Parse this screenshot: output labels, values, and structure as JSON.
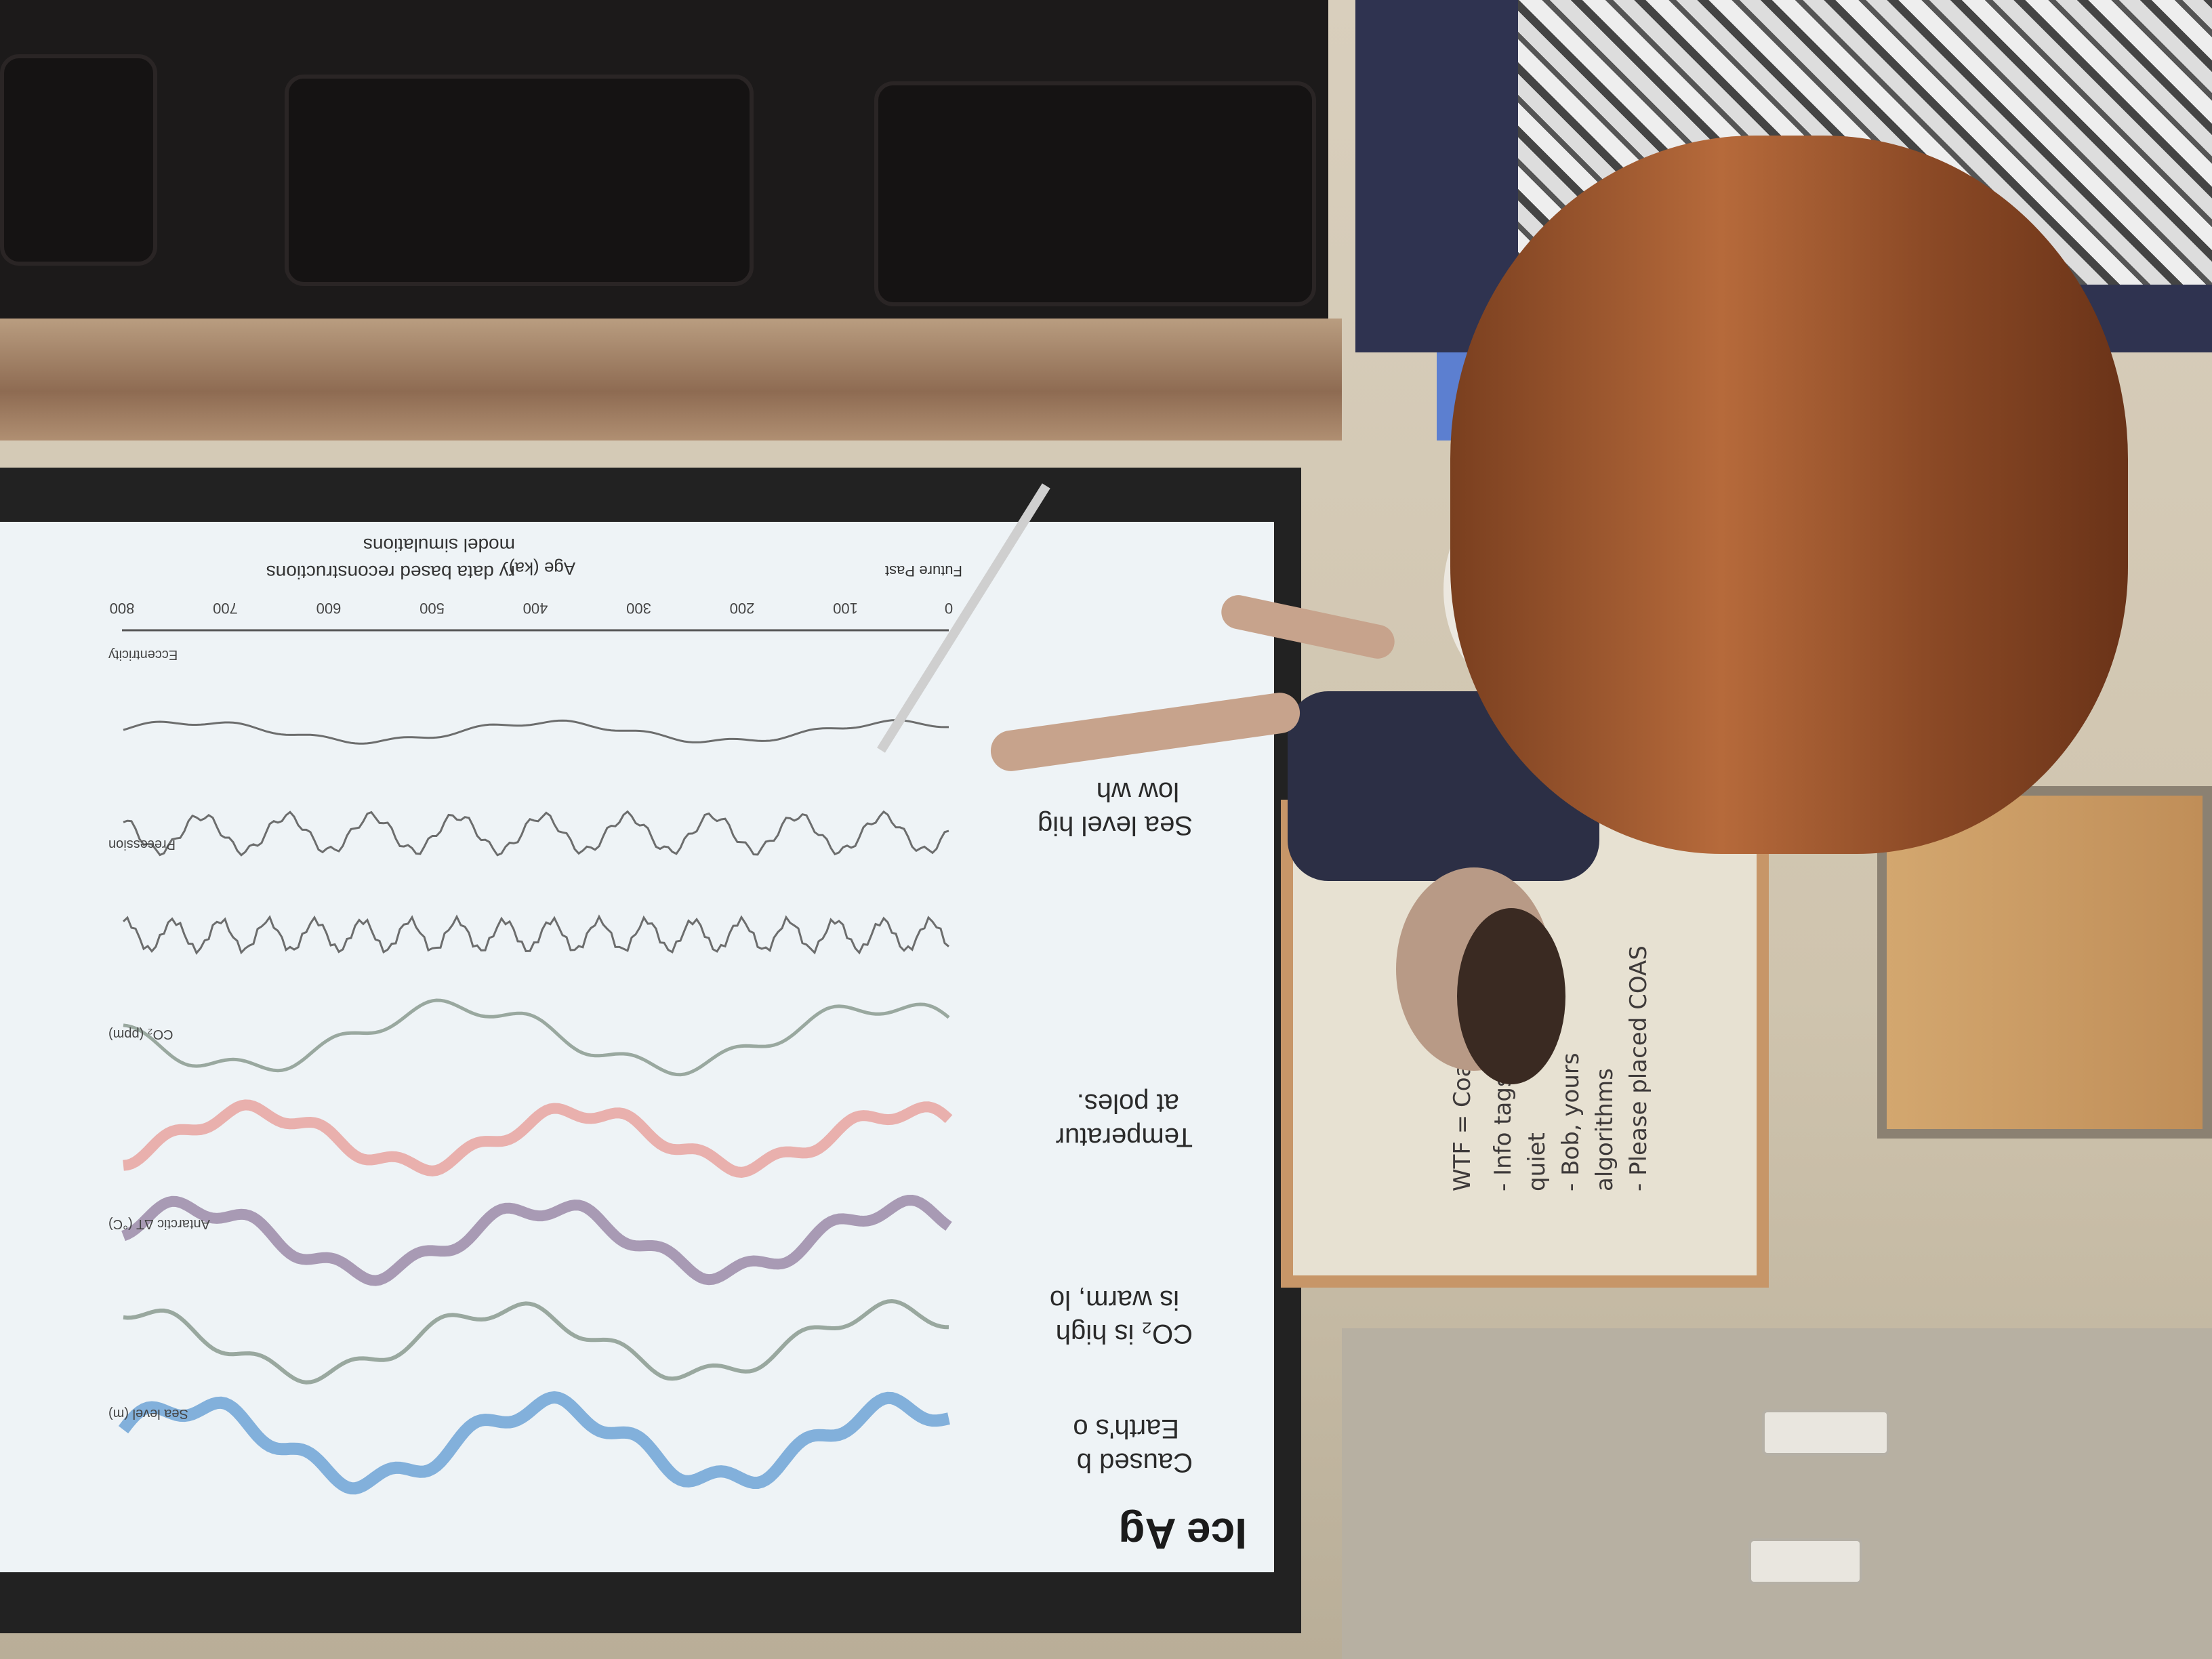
{
  "slide": {
    "title": "Ice Ag",
    "bullets": [
      "Caused b",
      "Earth's o",
      "CO₂ is high",
      "is warm, lo",
      "Temperatur",
      "at poles.",
      "Sea level hig",
      "low wh"
    ],
    "legend": [
      "ry data based reconstructions",
      "model simulations"
    ],
    "time_axis_label": "Age (ka)",
    "future_label": "Future",
    "past_label": "Past",
    "panel_labels": [
      "Eccentricity",
      "Precession",
      "CO₂ (ppm)",
      "Antarctic ΔT (°C)",
      "Sea level (m)"
    ],
    "ticks": [
      "0",
      "100",
      "200",
      "300",
      "400",
      "500",
      "600",
      "700",
      "800"
    ],
    "colors": {
      "sea_level": "#6fa3d6",
      "temperature": "#e8a3a0",
      "antarctic": "#9b8aa8",
      "co2": "#8a9a8f",
      "orbital": "#555555"
    }
  },
  "whiteboard": {
    "lines": [
      "WTF = Coast Guard",
      "- Info tags",
      "  quiet",
      "- Bob, yours",
      "  algorithms",
      "- Please placed COAS"
    ]
  }
}
